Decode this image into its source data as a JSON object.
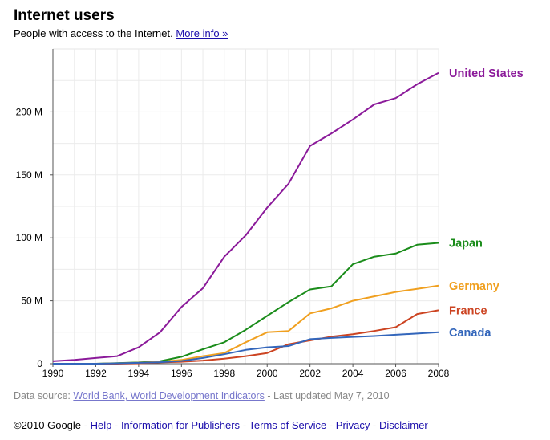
{
  "header": {
    "title": "Internet users",
    "subtitle": "People with access to the Internet.",
    "more_info": "More info »"
  },
  "source": {
    "prefix": "Data source:",
    "link": "World Bank, World Development Indicators",
    "updated": "- Last updated May 7, 2010"
  },
  "footer": {
    "copyright": "©2010 Google",
    "links": [
      "Help",
      "Information for Publishers",
      "Terms of Service",
      "Privacy",
      "Disclaimer"
    ]
  },
  "chart_data": {
    "type": "line",
    "title": "Internet users",
    "xlim": [
      1990,
      2008
    ],
    "ylim": [
      0,
      250000000
    ],
    "x_ticks": [
      1990,
      1992,
      1994,
      1996,
      1998,
      2000,
      2002,
      2004,
      2006,
      2008
    ],
    "y_ticks": [
      0,
      50000000,
      100000000,
      150000000,
      200000000
    ],
    "y_tick_labels": [
      "0",
      "50 M",
      "100 M",
      "150 M",
      "200 M"
    ],
    "grid": true,
    "legend": "right-inline",
    "x": [
      1990,
      1991,
      1992,
      1993,
      1994,
      1995,
      1996,
      1997,
      1998,
      1999,
      2000,
      2001,
      2002,
      2003,
      2004,
      2005,
      2006,
      2007,
      2008
    ],
    "series": [
      {
        "name": "United States",
        "color": "#8b1a9a",
        "values": [
          2000000,
          3000000,
          4500000,
          6000000,
          13000000,
          25000000,
          45000000,
          60000000,
          85000000,
          102000000,
          124000000,
          143000000,
          173000000,
          183000000,
          194000000,
          206000000,
          211000000,
          222000000,
          231000000
        ]
      },
      {
        "name": "Japan",
        "color": "#1a8c1a",
        "values": [
          0,
          0,
          0,
          500000,
          1000000,
          2000000,
          5500000,
          11500000,
          17000000,
          27000000,
          38000000,
          49000000,
          59000000,
          61500000,
          79000000,
          85000000,
          87500000,
          94500000,
          96000000
        ]
      },
      {
        "name": "Germany",
        "color": "#f0a020",
        "values": [
          0,
          0,
          0,
          300000,
          750000,
          1500000,
          3000000,
          6000000,
          8500000,
          17000000,
          25000000,
          26000000,
          40000000,
          44000000,
          50000000,
          53500000,
          57000000,
          59500000,
          62000000
        ]
      },
      {
        "name": "France",
        "color": "#cc4422",
        "values": [
          0,
          0,
          0,
          0,
          300000,
          1000000,
          1500000,
          2500000,
          4000000,
          6000000,
          8500000,
          15500000,
          18500000,
          21500000,
          23500000,
          26000000,
          29000000,
          39500000,
          42500000
        ]
      },
      {
        "name": "Canada",
        "color": "#3366bb",
        "values": [
          0,
          0,
          0,
          300000,
          700000,
          1200000,
          2200000,
          4500000,
          7500000,
          11000000,
          13000000,
          14000000,
          19500000,
          20500000,
          21300000,
          22000000,
          23000000,
          24000000,
          25000000
        ]
      }
    ]
  }
}
